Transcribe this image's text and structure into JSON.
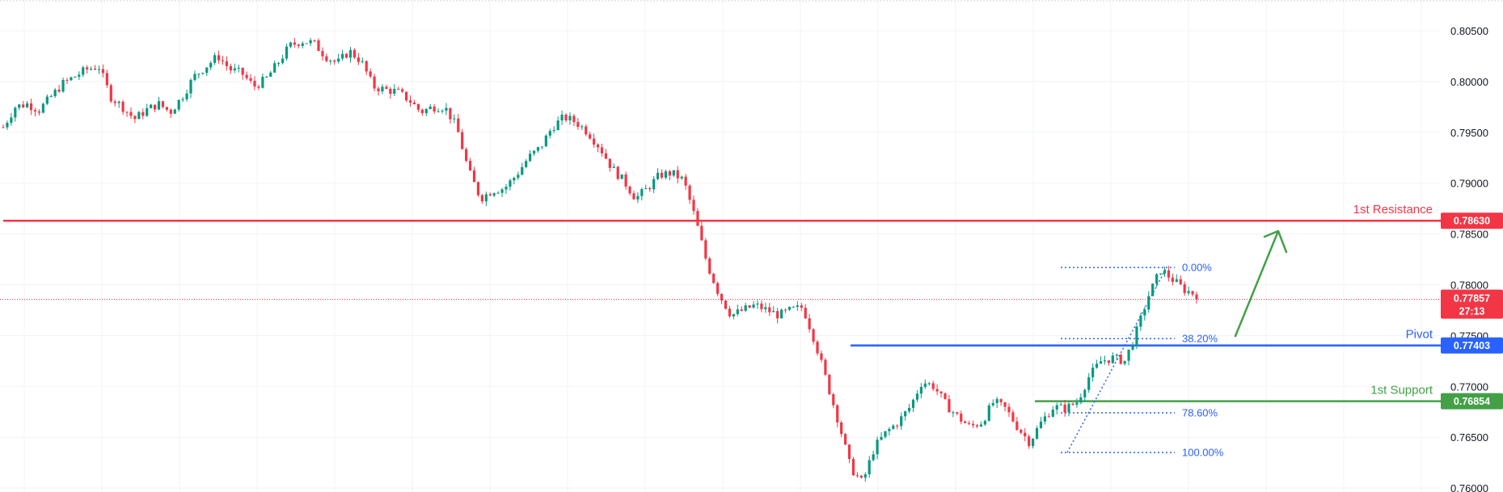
{
  "chart_data": {
    "type": "candlestick",
    "ylim": [
      0.7595,
      0.8073
    ],
    "y_ticks": [
      "0.80500",
      "0.80000",
      "0.79500",
      "0.79000",
      "0.78500",
      "0.78000",
      "0.77500",
      "0.77000",
      "0.76500",
      "0.76000"
    ],
    "grid": true,
    "last_price": "0.77857",
    "countdown": "27:13",
    "levels": [
      {
        "label": "1st Resistance",
        "value": "0.78630",
        "color": "#f23645"
      },
      {
        "label": "Pivot",
        "value": "0.77403",
        "color": "#2962ff"
      },
      {
        "label": "1st Support",
        "value": "0.76854",
        "color": "#43a047"
      }
    ],
    "fibonacci": [
      {
        "label": "0.00%",
        "value": 0.7817
      },
      {
        "label": "38.20%",
        "value": 0.7747
      },
      {
        "label": "78.60%",
        "value": 0.7674
      },
      {
        "label": "100.00%",
        "value": 0.7635
      }
    ],
    "price_path": [
      0.7955,
      0.7975,
      0.7978,
      0.7972,
      0.7985,
      0.7998,
      0.8005,
      0.8012,
      0.8015,
      0.7985,
      0.7975,
      0.7963,
      0.7972,
      0.7978,
      0.797,
      0.7985,
      0.8005,
      0.8015,
      0.8025,
      0.8012,
      0.8008,
      0.7995,
      0.8002,
      0.8018,
      0.8035,
      0.804,
      0.8038,
      0.8025,
      0.8018,
      0.803,
      0.802,
      0.7995,
      0.7992,
      0.799,
      0.7982,
      0.797,
      0.7975,
      0.7975,
      0.7955,
      0.7912,
      0.7885,
      0.7893,
      0.7895,
      0.7908,
      0.7925,
      0.7935,
      0.7955,
      0.7965,
      0.796,
      0.795,
      0.7935,
      0.7915,
      0.7902,
      0.7885,
      0.7895,
      0.7908,
      0.791,
      0.7903,
      0.7865,
      0.782,
      0.779,
      0.777,
      0.7775,
      0.778,
      0.7775,
      0.777,
      0.7775,
      0.7778,
      0.7745,
      0.7705,
      0.7665,
      0.762,
      0.7605,
      0.764,
      0.7655,
      0.7665,
      0.768,
      0.7705,
      0.77,
      0.7682,
      0.767,
      0.766,
      0.7665,
      0.7685,
      0.7678,
      0.766,
      0.7645,
      0.7665,
      0.768,
      0.7678,
      0.7685,
      0.771,
      0.7725,
      0.7728,
      0.7725,
      0.7755,
      0.779,
      0.7815,
      0.7805,
      0.7795,
      0.779
    ]
  }
}
